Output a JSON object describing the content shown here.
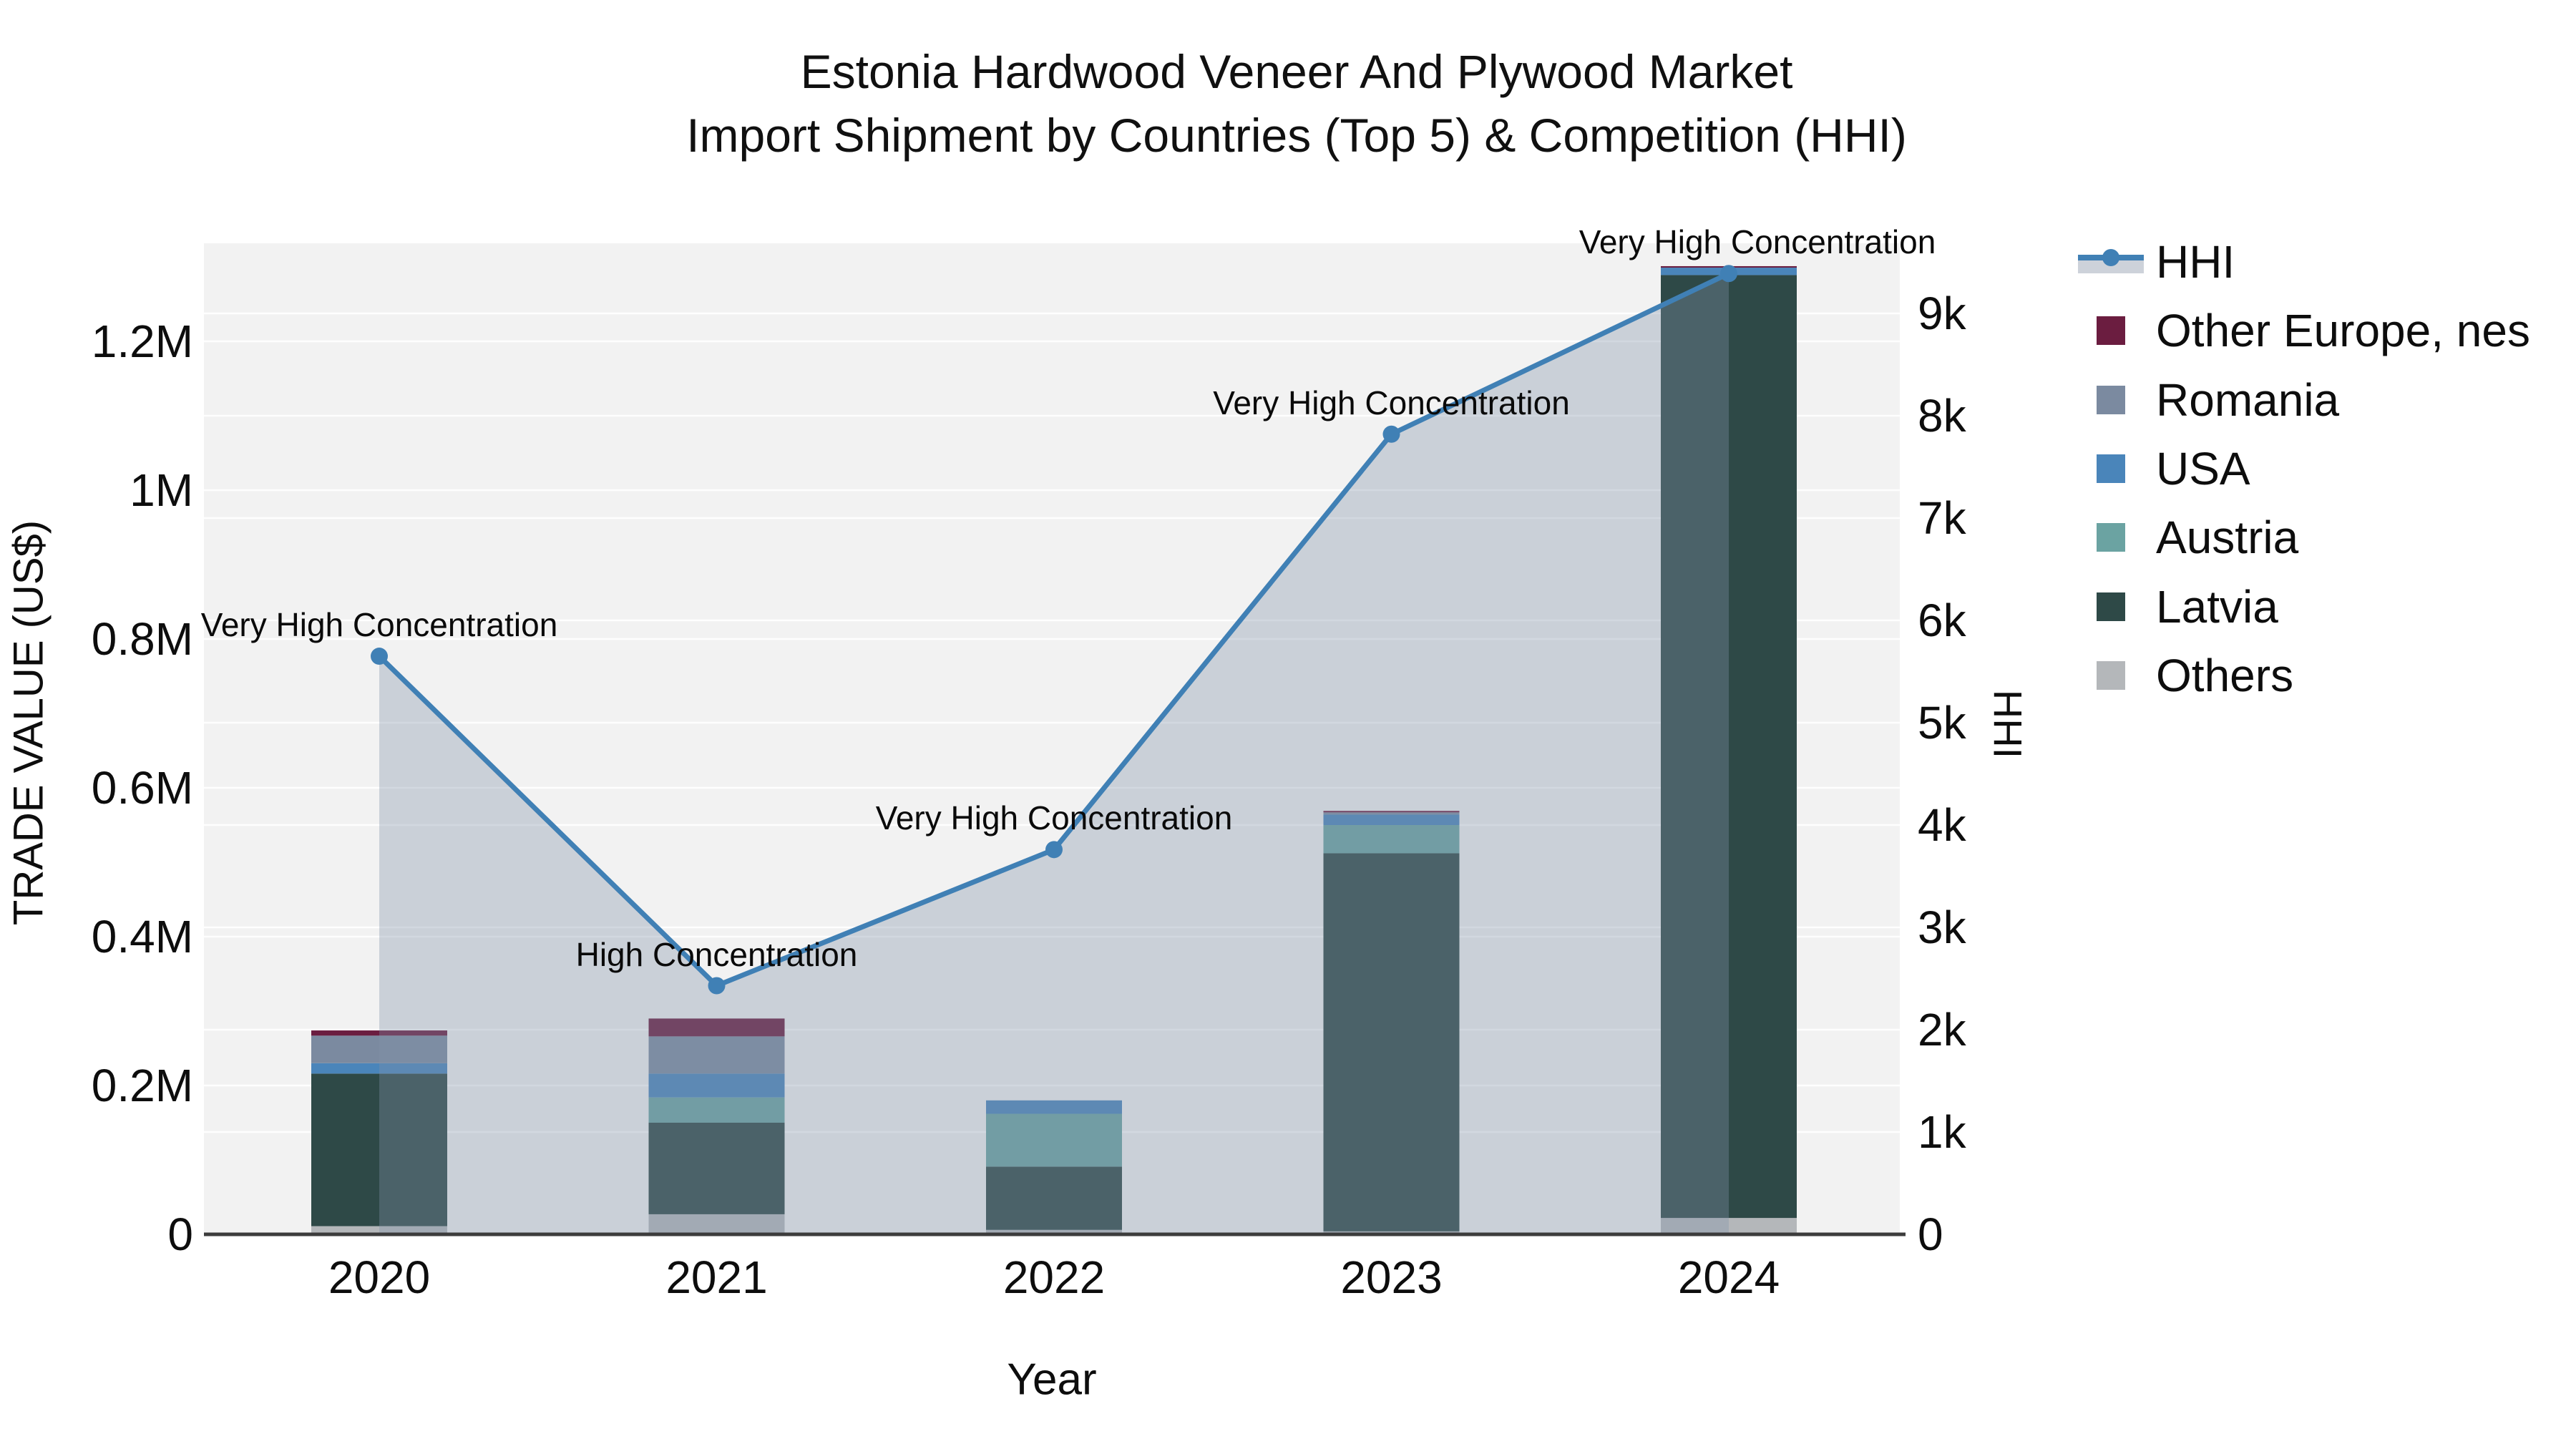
{
  "title": {
    "line1": "Estonia Hardwood Veneer And Plywood Market",
    "line2": "Import Shipment by Countries (Top 5) & Competition (HHI)"
  },
  "axes": {
    "y_left": {
      "title": "TRADE VALUE (US$)",
      "ticks": [
        "0",
        "0.2M",
        "0.4M",
        "0.6M",
        "0.8M",
        "1M",
        "1.2M"
      ],
      "tick_values_usd": [
        0,
        200000,
        400000,
        600000,
        800000,
        1000000,
        1200000
      ]
    },
    "y_right": {
      "title": "HHI",
      "ticks": [
        "0",
        "1k",
        "2k",
        "3k",
        "4k",
        "5k",
        "6k",
        "7k",
        "8k",
        "9k"
      ],
      "tick_values": [
        0,
        1000,
        2000,
        3000,
        4000,
        5000,
        6000,
        7000,
        8000,
        9000
      ]
    },
    "x": {
      "title": "Year",
      "ticks": [
        "2020",
        "2021",
        "2022",
        "2023",
        "2024"
      ]
    }
  },
  "legend": [
    {
      "label": "HHI",
      "type": "line",
      "color": "#4080b5",
      "band_color": "#cdd2da"
    },
    {
      "label": "Other Europe, nes",
      "type": "box",
      "color": "#6b1d40"
    },
    {
      "label": "Romania",
      "type": "box",
      "color": "#7b8aa0"
    },
    {
      "label": "USA",
      "type": "box",
      "color": "#4a85ba"
    },
    {
      "label": "Austria",
      "type": "box",
      "color": "#6ba3a2"
    },
    {
      "label": "Latvia",
      "type": "box",
      "color": "#2e4947"
    },
    {
      "label": "Others",
      "type": "box",
      "color": "#b4b7ba"
    }
  ],
  "chart_data": {
    "type": "combo: stacked-bar + line-area (dual axis)",
    "categories": [
      "2020",
      "2021",
      "2022",
      "2023",
      "2024"
    ],
    "xlabel": "Year",
    "ylabel_left": "TRADE VALUE (US$)",
    "ylabel_right": "HHI",
    "ylim_left_usd": [
      0,
      1350000
    ],
    "ylim_right_hhi": [
      0,
      9700
    ],
    "grid": "faint white gridlines for both axes",
    "legend_position": "right",
    "plot_bg": "#f2f2f2",
    "series": [
      {
        "name": "Others",
        "color": "#b4b7ba",
        "values_usd": [
          11000,
          27000,
          6000,
          4000,
          22000
        ]
      },
      {
        "name": "Latvia",
        "color": "#2e4947",
        "values_usd": [
          205000,
          123000,
          85000,
          508000,
          1267000
        ]
      },
      {
        "name": "Austria",
        "color": "#6ba3a2",
        "values_usd": [
          0,
          34000,
          71000,
          38000,
          0
        ]
      },
      {
        "name": "USA",
        "color": "#4a85ba",
        "values_usd": [
          14000,
          32000,
          18000,
          14000,
          10000
        ]
      },
      {
        "name": "Romania",
        "color": "#7b8aa0",
        "values_usd": [
          37000,
          50000,
          0,
          3000,
          0
        ]
      },
      {
        "name": "Other Europe, nes",
        "color": "#6b1d40",
        "values_usd": [
          7000,
          24000,
          0,
          2000,
          2000
        ]
      }
    ],
    "bar_totals_usd": [
      274000,
      290000,
      180000,
      569000,
      1301000
    ],
    "hhi_line": {
      "name": "HHI",
      "color": "#4080b5",
      "area_fill": "rgba(130,146,170,0.35)",
      "values": [
        5650,
        2430,
        3760,
        7820,
        9390
      ],
      "annotations": [
        "Very High Concentration",
        "High Concentration",
        "Very High Concentration",
        "Very High Concentration",
        "Very High Concentration"
      ]
    }
  }
}
